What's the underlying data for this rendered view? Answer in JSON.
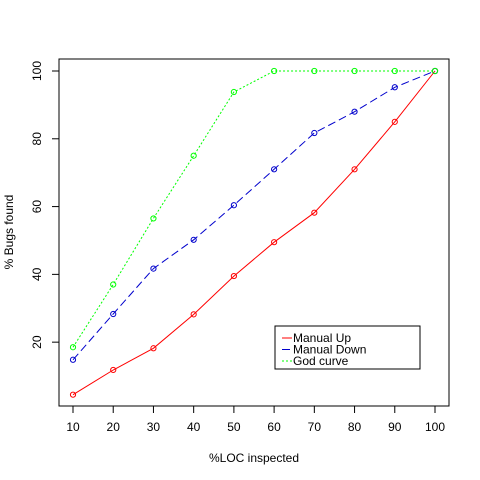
{
  "chart_data": {
    "type": "line",
    "title": "",
    "xlabel": "%LOC inspected",
    "ylabel": "% Bugs found",
    "x": [
      10,
      20,
      30,
      40,
      50,
      60,
      70,
      80,
      90,
      100
    ],
    "xlim": [
      10,
      100
    ],
    "ylim": [
      5,
      100
    ],
    "x_ticks": [
      10,
      20,
      30,
      40,
      50,
      60,
      70,
      80,
      90,
      100
    ],
    "y_ticks": [
      20,
      40,
      60,
      80,
      100
    ],
    "grid": false,
    "legend_position": "bottom-right",
    "series": [
      {
        "name": "Manual Up",
        "color": "#ff0000",
        "line_style": "solid",
        "marker": "open-circle",
        "values": [
          4.5,
          11.8,
          18.2,
          28.2,
          39.5,
          49.5,
          58.2,
          71.0,
          85.0,
          100
        ]
      },
      {
        "name": "Manual Down",
        "color": "#0000cc",
        "line_style": "dashed",
        "marker": "open-circle",
        "values": [
          14.8,
          28.3,
          41.7,
          50.2,
          60.4,
          71.0,
          81.7,
          88.0,
          95.2,
          100
        ]
      },
      {
        "name": "God curve",
        "color": "#00ff00",
        "line_style": "dotted",
        "marker": "open-circle",
        "values": [
          18.5,
          37.0,
          56.5,
          75.0,
          93.8,
          100,
          100,
          100,
          100,
          100
        ]
      }
    ]
  }
}
